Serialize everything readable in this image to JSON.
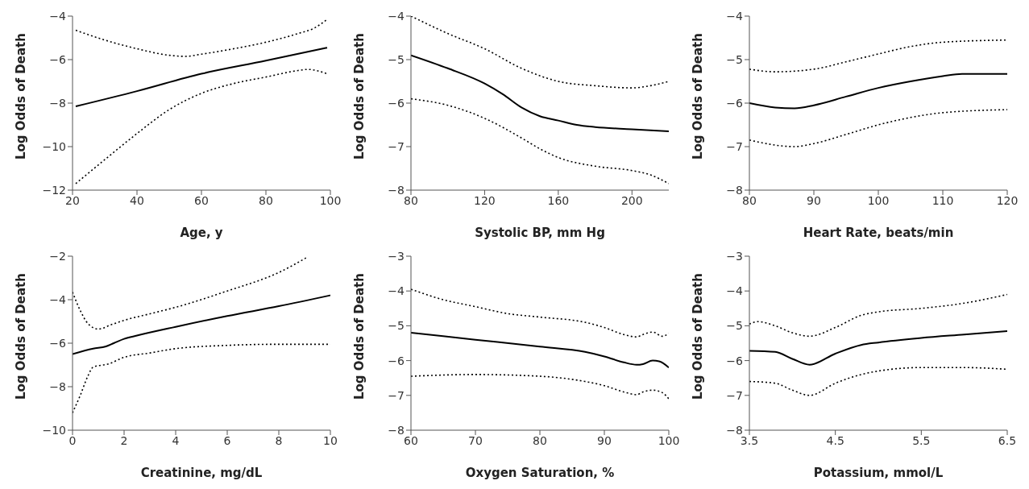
{
  "chart_data": [
    {
      "type": "line",
      "xlabel": "Age, y",
      "ylabel": "Log Odds of Death",
      "xlim": [
        20,
        100
      ],
      "xticks": [
        20,
        40,
        60,
        80,
        100
      ],
      "ylim": [
        -12,
        -4
      ],
      "yticks": [
        -12,
        -10,
        -8,
        -6,
        -4
      ],
      "grid": false,
      "marker": "none",
      "series": [
        {
          "color": "#000000",
          "line_style": "solid",
          "x": [
            21,
            40,
            60,
            80,
            99
          ],
          "values": [
            -8.15,
            -7.45,
            -6.65,
            -6.05,
            -5.45
          ]
        },
        {
          "color": "#000000",
          "line_style": "dotted",
          "x": [
            21,
            30,
            40,
            50,
            55,
            60,
            70,
            80,
            90,
            95,
            99
          ],
          "values": [
            -4.65,
            -5.1,
            -5.5,
            -5.8,
            -5.85,
            -5.75,
            -5.5,
            -5.2,
            -4.8,
            -4.55,
            -4.15
          ]
        },
        {
          "color": "#000000",
          "line_style": "dotted",
          "x": [
            21,
            30,
            40,
            50,
            60,
            70,
            80,
            90,
            93,
            99
          ],
          "values": [
            -11.7,
            -10.6,
            -9.4,
            -8.3,
            -7.55,
            -7.1,
            -6.8,
            -6.5,
            -6.45,
            -6.65
          ]
        }
      ]
    },
    {
      "type": "line",
      "xlabel": "Systolic BP, mm Hg",
      "ylabel": "Log Odds of Death",
      "xlim": [
        80,
        220
      ],
      "xticks": [
        80,
        120,
        160,
        200
      ],
      "ylim": [
        -8,
        -4
      ],
      "yticks": [
        -8,
        -7,
        -6,
        -5,
        -4
      ],
      "grid": false,
      "marker": "none",
      "series": [
        {
          "color": "#000000",
          "line_style": "solid",
          "x": [
            80,
            100,
            120,
            130,
            140,
            150,
            160,
            170,
            180,
            200,
            220
          ],
          "values": [
            -4.9,
            -5.2,
            -5.55,
            -5.8,
            -6.1,
            -6.3,
            -6.4,
            -6.5,
            -6.55,
            -6.6,
            -6.65
          ]
        },
        {
          "color": "#000000",
          "line_style": "dotted",
          "x": [
            80,
            100,
            120,
            140,
            160,
            180,
            200,
            210,
            220
          ],
          "values": [
            -4.0,
            -4.4,
            -4.75,
            -5.2,
            -5.5,
            -5.6,
            -5.65,
            -5.6,
            -5.5
          ]
        },
        {
          "color": "#000000",
          "line_style": "dotted",
          "x": [
            80,
            100,
            120,
            140,
            150,
            160,
            180,
            200,
            210,
            220
          ],
          "values": [
            -5.9,
            -6.05,
            -6.35,
            -6.8,
            -7.05,
            -7.25,
            -7.45,
            -7.55,
            -7.65,
            -7.85
          ]
        }
      ]
    },
    {
      "type": "line",
      "xlabel": "Heart Rate, beats/min",
      "ylabel": "Log Odds of Death",
      "xlim": [
        80,
        120
      ],
      "xticks": [
        80,
        90,
        100,
        110,
        120
      ],
      "ylim": [
        -8,
        -4
      ],
      "yticks": [
        -8,
        -7,
        -6,
        -5,
        -4
      ],
      "grid": false,
      "marker": "none",
      "series": [
        {
          "color": "#000000",
          "line_style": "solid",
          "x": [
            80,
            84,
            87,
            90,
            95,
            100,
            105,
            110,
            113,
            120
          ],
          "values": [
            -6.0,
            -6.1,
            -6.12,
            -6.05,
            -5.85,
            -5.65,
            -5.5,
            -5.38,
            -5.33,
            -5.33
          ]
        },
        {
          "color": "#000000",
          "line_style": "dotted",
          "x": [
            80,
            84,
            90,
            95,
            100,
            105,
            110,
            120
          ],
          "values": [
            -5.22,
            -5.28,
            -5.22,
            -5.05,
            -4.87,
            -4.7,
            -4.6,
            -4.55
          ]
        },
        {
          "color": "#000000",
          "line_style": "dotted",
          "x": [
            80,
            87,
            90,
            95,
            100,
            105,
            110,
            120
          ],
          "values": [
            -6.85,
            -7.0,
            -6.93,
            -6.72,
            -6.5,
            -6.33,
            -6.22,
            -6.15
          ]
        }
      ]
    },
    {
      "type": "line",
      "xlabel": "Creatinine, mg/dL",
      "ylabel": "Log Odds of Death",
      "xlim": [
        0,
        10
      ],
      "xticks": [
        0,
        2,
        4,
        6,
        8,
        10
      ],
      "ylim": [
        -10,
        -2
      ],
      "yticks": [
        -10,
        -8,
        -6,
        -4,
        -2
      ],
      "grid": false,
      "marker": "none",
      "series": [
        {
          "color": "#000000",
          "line_style": "solid",
          "x": [
            0,
            0.8,
            1.3,
            1.6,
            2,
            2.5,
            4,
            6,
            8,
            10
          ],
          "values": [
            -6.5,
            -6.25,
            -6.15,
            -6.0,
            -5.8,
            -5.65,
            -5.25,
            -4.75,
            -4.3,
            -3.8
          ]
        },
        {
          "color": "#000000",
          "line_style": "dotted",
          "x": [
            0,
            0.3,
            0.6,
            1,
            1.5,
            2,
            3,
            4,
            6,
            8,
            9.1
          ],
          "values": [
            -3.65,
            -4.5,
            -5.1,
            -5.35,
            -5.15,
            -4.95,
            -4.65,
            -4.35,
            -3.6,
            -2.75,
            -2.05
          ]
        },
        {
          "color": "#000000",
          "line_style": "dotted",
          "x": [
            0,
            0.3,
            0.6,
            0.8,
            1.4,
            2,
            3,
            4,
            6,
            8,
            10
          ],
          "values": [
            -9.2,
            -8.4,
            -7.5,
            -7.1,
            -6.95,
            -6.65,
            -6.45,
            -6.25,
            -6.1,
            -6.05,
            -6.05
          ]
        }
      ]
    },
    {
      "type": "line",
      "xlabel": "Oxygen Saturation, %",
      "ylabel": "Log Odds of Death",
      "xlim": [
        60,
        100
      ],
      "xticks": [
        60,
        70,
        80,
        90,
        100
      ],
      "ylim": [
        -8,
        -3
      ],
      "yticks": [
        -8,
        -7,
        -6,
        -5,
        -4,
        -3
      ],
      "grid": false,
      "marker": "none",
      "series": [
        {
          "color": "#000000",
          "line_style": "solid",
          "x": [
            60,
            70,
            80,
            87,
            90,
            93,
            95,
            96,
            97.5,
            98.5,
            100
          ],
          "values": [
            -5.2,
            -5.4,
            -5.6,
            -5.75,
            -5.88,
            -6.05,
            -6.12,
            -6.1,
            -6.0,
            -6.02,
            -6.2
          ]
        },
        {
          "color": "#000000",
          "line_style": "dotted",
          "x": [
            60,
            65,
            70,
            75,
            80,
            87,
            90,
            93,
            95,
            96,
            97.5,
            99,
            100
          ],
          "values": [
            -3.95,
            -4.25,
            -4.45,
            -4.65,
            -4.75,
            -4.9,
            -5.05,
            -5.25,
            -5.32,
            -5.25,
            -5.18,
            -5.3,
            -5.22
          ]
        },
        {
          "color": "#000000",
          "line_style": "dotted",
          "x": [
            60,
            70,
            80,
            87,
            90,
            93,
            95,
            96,
            97.5,
            99,
            100
          ],
          "values": [
            -6.45,
            -6.4,
            -6.45,
            -6.6,
            -6.72,
            -6.9,
            -6.98,
            -6.9,
            -6.85,
            -6.92,
            -7.1
          ]
        }
      ]
    },
    {
      "type": "line",
      "xlabel": "Potassium, mmol/L",
      "ylabel": "Log Odds of Death",
      "xlim": [
        3.5,
        6.5
      ],
      "xticks": [
        3.5,
        4.5,
        5.5,
        6.5
      ],
      "ylim": [
        -8,
        -3
      ],
      "yticks": [
        -8,
        -7,
        -6,
        -5,
        -4,
        -3
      ],
      "grid": false,
      "marker": "none",
      "series": [
        {
          "color": "#000000",
          "line_style": "solid",
          "x": [
            3.5,
            3.8,
            4.0,
            4.2,
            4.5,
            4.8,
            5,
            5.5,
            6,
            6.5
          ],
          "values": [
            -5.72,
            -5.75,
            -5.95,
            -6.12,
            -5.8,
            -5.55,
            -5.48,
            -5.35,
            -5.25,
            -5.15
          ]
        },
        {
          "color": "#000000",
          "line_style": "dotted",
          "x": [
            3.5,
            3.6,
            3.8,
            4.0,
            4.2,
            4.5,
            4.8,
            5,
            5.5,
            6,
            6.5
          ],
          "values": [
            -4.95,
            -4.88,
            -5.0,
            -5.2,
            -5.3,
            -5.05,
            -4.7,
            -4.6,
            -4.5,
            -4.35,
            -4.1
          ]
        },
        {
          "color": "#000000",
          "line_style": "dotted",
          "x": [
            3.5,
            3.8,
            4.0,
            4.2,
            4.5,
            4.8,
            5,
            5.5,
            6,
            6.5
          ],
          "values": [
            -6.6,
            -6.65,
            -6.85,
            -7.0,
            -6.65,
            -6.4,
            -6.3,
            -6.2,
            -6.2,
            -6.25
          ]
        }
      ]
    }
  ]
}
